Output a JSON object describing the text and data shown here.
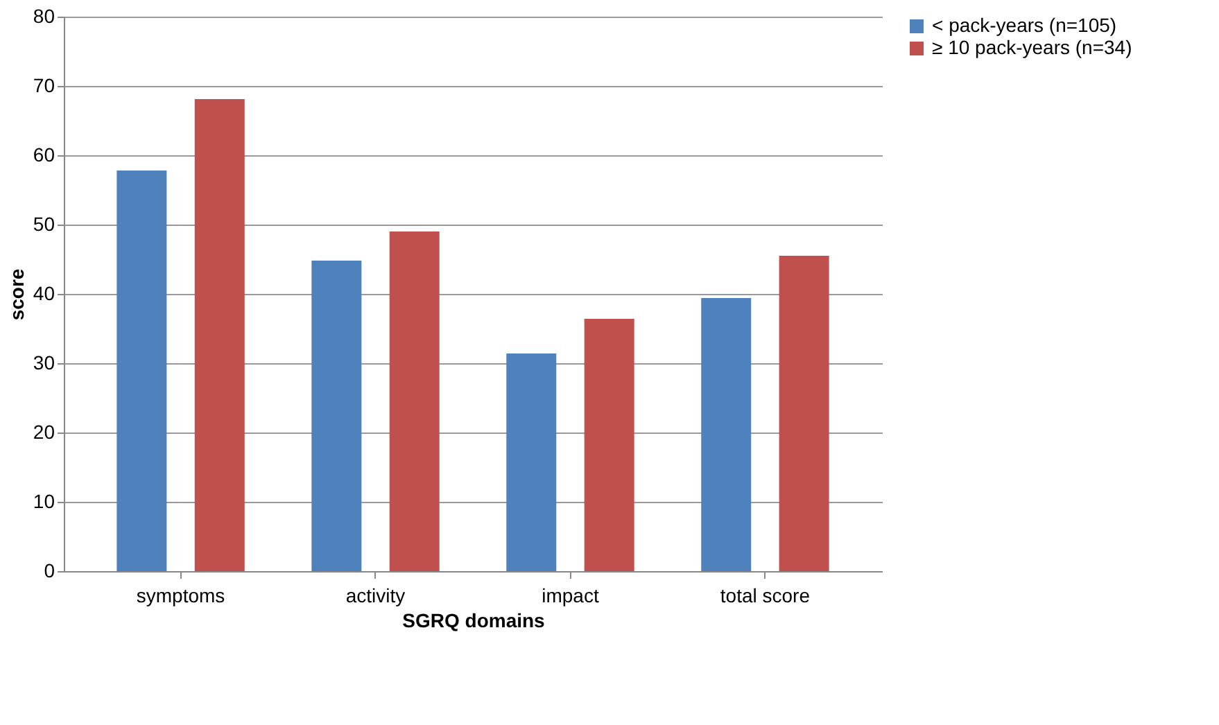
{
  "chart_data": {
    "type": "bar",
    "xlabel": "SGRQ domains",
    "ylabel": "score",
    "categories": [
      "symptoms",
      "activity",
      "impact",
      "total score"
    ],
    "series": [
      {
        "name": "< pack-years (n=105)",
        "color": "#4f81bd",
        "values": [
          57.8,
          44.8,
          31.4,
          39.4
        ]
      },
      {
        "name": "≥ 10 pack-years (n=34)",
        "color": "#c0504d",
        "values": [
          68.1,
          49.0,
          36.4,
          45.5
        ]
      }
    ],
    "ylim": [
      0,
      80
    ],
    "yticks": [
      0,
      10,
      20,
      30,
      40,
      50,
      60,
      70,
      80
    ],
    "grid": "y",
    "legend": "right"
  }
}
